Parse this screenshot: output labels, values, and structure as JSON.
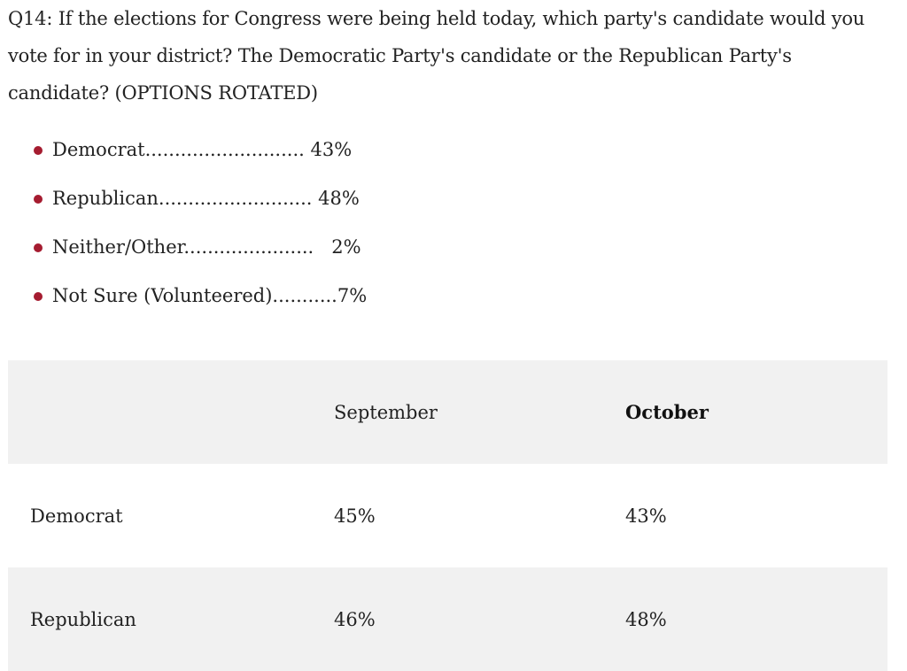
{
  "question": {
    "text": "Q14:  If the elections for Congress were being held today, which party's candidate would you vote for in your district? The Democratic Party's candidate or the Republican Party's candidate? (OPTIONS ROTATED)"
  },
  "results": [
    {
      "text": "Democrat........................... 43%"
    },
    {
      "text": "Republican.......................... 48%"
    },
    {
      "text": "Neither/Other......................   2%"
    },
    {
      "text": "Not Sure (Volunteered)...........7%"
    }
  ],
  "bullet_color": "#a51c30",
  "table": {
    "headers": [
      "",
      "September",
      "October"
    ],
    "rows": [
      [
        "Democrat",
        "45%",
        "43%"
      ],
      [
        "Republican",
        "46%",
        "48%"
      ]
    ]
  }
}
